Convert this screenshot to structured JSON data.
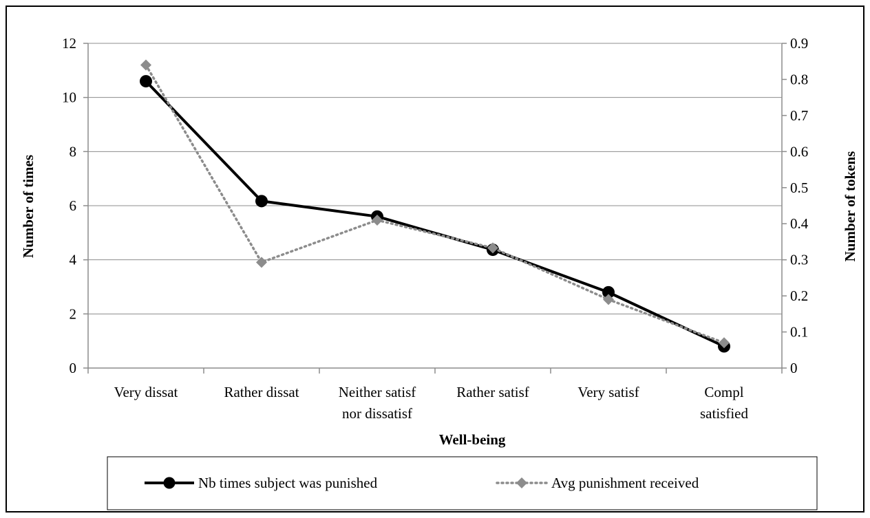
{
  "chart_data": {
    "type": "line",
    "xlabel": "Well-being",
    "ylabel": "Number of times",
    "y2label": "Number of tokens",
    "categories": [
      [
        "Very dissat"
      ],
      [
        "Rather dissat"
      ],
      [
        "Neither satisf",
        "nor dissatisf"
      ],
      [
        "Rather satisf"
      ],
      [
        "Very satisf"
      ],
      [
        "Compl",
        "satisfied"
      ]
    ],
    "ylim": [
      0,
      12
    ],
    "yticks": [
      "0",
      "2",
      "4",
      "6",
      "8",
      "10",
      "12"
    ],
    "y2lim": [
      0,
      0.9
    ],
    "y2ticks": [
      "0",
      "0.1",
      "0.2",
      "0.3",
      "0.4",
      "0.5",
      "0.6",
      "0.7",
      "0.8",
      "0.9"
    ],
    "grid": true,
    "legend_position": "bottom",
    "series": [
      {
        "name": "Nb times subject was punished",
        "axis": "left",
        "marker": "circle",
        "line": "solid",
        "color": "#000000",
        "values": [
          10.6,
          6.17,
          5.6,
          4.37,
          2.8,
          0.8
        ]
      },
      {
        "name": "Avg punishment received",
        "axis": "right",
        "marker": "diamond",
        "line": "dotted",
        "color": "#8c8c8c",
        "values": [
          0.84,
          0.293,
          0.41,
          0.333,
          0.19,
          0.07
        ]
      }
    ]
  }
}
